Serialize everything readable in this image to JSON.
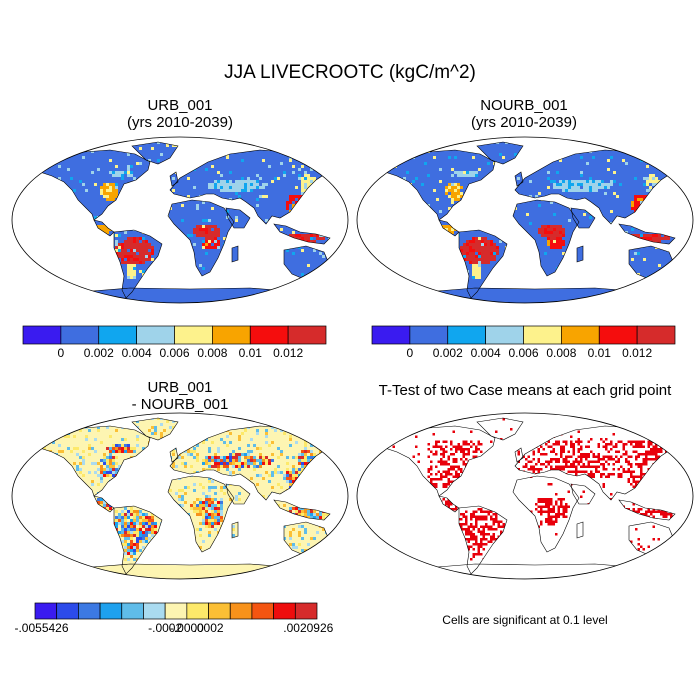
{
  "title": "JJA LIVECROOTC (kgC/m^2)",
  "panels": [
    {
      "title_line1": "URB_001",
      "title_line2": "(yrs 2010-2039)"
    },
    {
      "title_line1": "NOURB_001",
      "title_line2": "(yrs 2010-2039)"
    },
    {
      "title_line1": "URB_001",
      "title_line2": "- NOURB_001"
    },
    {
      "title_line1": "T-Test of two Case means at each grid point",
      "note": "Cells are significant at 0.1 level"
    }
  ],
  "colorbars": {
    "abs": {
      "colors": [
        "#3a1bf0",
        "#3f6ee0",
        "#10a6ef",
        "#9fd3ea",
        "#fdf28c",
        "#f8a400",
        "#f50d0d",
        "#d62b2b"
      ],
      "labels": [
        "0",
        "0.002",
        "0.004",
        "0.006",
        "0.008",
        "0.01",
        "0.012"
      ]
    },
    "diff": {
      "colors": [
        "#3a1bf0",
        "#2c4bea",
        "#3c79e3",
        "#1ea1ee",
        "#5fbce9",
        "#aadbf0",
        "#fdf5b2",
        "#fde96a",
        "#fbbf35",
        "#f7921b",
        "#f45511",
        "#ee0d0d",
        "#d62b2b"
      ],
      "labels": [
        "-.0055426",
        "-.0002",
        "-.0000",
        ".0002",
        ".0020926"
      ]
    }
  }
}
